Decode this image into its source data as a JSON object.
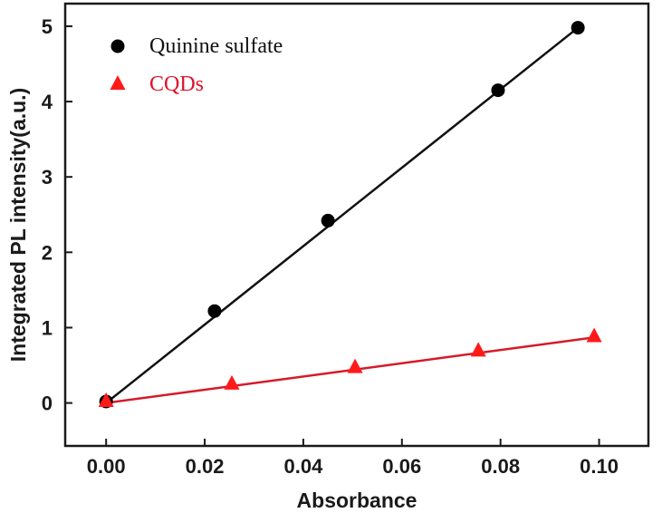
{
  "chart_data": {
    "type": "scatter",
    "xlabel": "Absorbance",
    "ylabel": "Integrated PL intensity(a.u.)",
    "xlim": [
      -0.0083,
      0.11
    ],
    "ylim": [
      -0.57,
      5.3
    ],
    "x_ticks": [
      0.0,
      0.02,
      0.04,
      0.06,
      0.08,
      0.1
    ],
    "x_tick_labels": [
      "0.00",
      "0.02",
      "0.04",
      "0.06",
      "0.08",
      "0.10"
    ],
    "y_ticks": [
      0,
      1,
      2,
      3,
      4,
      5
    ],
    "y_tick_labels": [
      "0",
      "1",
      "2",
      "3",
      "4",
      "5"
    ],
    "grid": false,
    "legend_position": "top-left",
    "series": [
      {
        "name": "Quinine sulfate",
        "marker": "circle",
        "color": "#000000",
        "line_color": "#111111",
        "text_color": "#111111",
        "x": [
          0.0,
          0.022,
          0.045,
          0.0795,
          0.0957
        ],
        "y": [
          0.02,
          1.22,
          2.42,
          4.15,
          4.98
        ],
        "fit": {
          "x": [
            0.0,
            0.0957
          ],
          "y": [
            0.0,
            4.98
          ]
        }
      },
      {
        "name": "CQDs",
        "marker": "triangle",
        "color": "#ff1a1a",
        "line_color": "#d61a2a",
        "text_color": "#e0102a",
        "x": [
          0.0,
          0.0255,
          0.0505,
          0.0755,
          0.099
        ],
        "y": [
          0.02,
          0.25,
          0.47,
          0.69,
          0.88
        ],
        "fit": {
          "x": [
            0.0,
            0.099
          ],
          "y": [
            0.0,
            0.87
          ]
        }
      }
    ]
  }
}
